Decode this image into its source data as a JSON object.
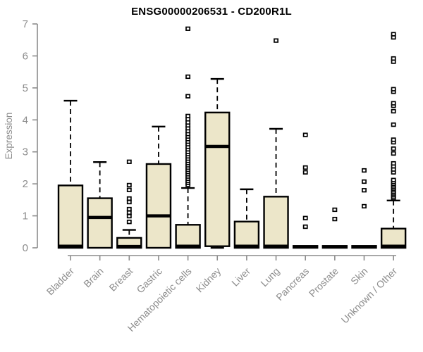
{
  "title": "ENSG00000206531 - CD200R1L",
  "ylabel": "Expression",
  "chart_data": {
    "type": "boxplot",
    "title": "ENSG00000206531 - CD200R1L",
    "xlabel": "",
    "ylabel": "Expression",
    "ylim": [
      0,
      7
    ],
    "yticks": [
      0,
      1,
      2,
      3,
      4,
      5,
      6,
      7
    ],
    "grid": false,
    "legend": "none",
    "colors": {
      "box_fill": "#ece6c9",
      "box_stroke": "#000000",
      "median": "#000000",
      "whisker": "#000000",
      "outlier_stroke": "#000000",
      "outlier_fill": "#ffffff",
      "axis": "#8c8c8c",
      "title_text": "#000000",
      "background": "#ffffff"
    },
    "categories": [
      "Bladder",
      "Brain",
      "Breast",
      "Gastric",
      "Hematopoietic cells",
      "Kidney",
      "Liver",
      "Lung",
      "Pancreas",
      "Prostate",
      "Skin",
      "Unknown / Other"
    ],
    "series": [
      {
        "name": "Bladder",
        "whisker_low": 0,
        "q1": 0,
        "median": 0.05,
        "q3": 1.95,
        "whisker_high": 4.6,
        "outliers": []
      },
      {
        "name": "Brain",
        "whisker_low": 0,
        "q1": 0,
        "median": 0.95,
        "q3": 1.55,
        "whisker_high": 2.68,
        "outliers": []
      },
      {
        "name": "Breast",
        "whisker_low": 0,
        "q1": 0,
        "median": 0.04,
        "q3": 0.31,
        "whisker_high": 0.56,
        "outliers": [
          0.81,
          0.99,
          1.1,
          1.21,
          1.43,
          1.54,
          1.81,
          1.96,
          2.69
        ]
      },
      {
        "name": "Gastric",
        "whisker_low": 0,
        "q1": 0,
        "median": 1.0,
        "q3": 2.62,
        "whisker_high": 3.79,
        "outliers": []
      },
      {
        "name": "Hematopoietic cells",
        "whisker_low": 0,
        "q1": 0,
        "median": 0.05,
        "q3": 0.72,
        "whisker_high": 1.87,
        "outliers": [
          1.97,
          2.03,
          2.09,
          2.16,
          2.23,
          2.3,
          2.37,
          2.44,
          2.51,
          2.58,
          2.65,
          2.72,
          2.79,
          2.86,
          2.93,
          3.0,
          3.08,
          3.16,
          3.24,
          3.32,
          3.4,
          3.48,
          3.56,
          3.65,
          3.74,
          3.83,
          3.92,
          4.02,
          4.12,
          4.74,
          5.35,
          6.85
        ]
      },
      {
        "name": "Kidney",
        "whisker_low": 0,
        "q1": 0.05,
        "median": 3.17,
        "q3": 4.23,
        "whisker_high": 5.28,
        "outliers": []
      },
      {
        "name": "Liver",
        "whisker_low": 0,
        "q1": 0,
        "median": 0.05,
        "q3": 0.82,
        "whisker_high": 1.83,
        "outliers": []
      },
      {
        "name": "Lung",
        "whisker_low": 0,
        "q1": 0,
        "median": 0.05,
        "q3": 1.6,
        "whisker_high": 3.72,
        "outliers": [
          6.48
        ]
      },
      {
        "name": "Pancreas",
        "whisker_low": 0,
        "q1": 0,
        "median": 0.03,
        "q3": 0.06,
        "whisker_high": 0.06,
        "outliers": [
          0.66,
          0.93,
          2.36,
          2.51,
          3.53
        ]
      },
      {
        "name": "Prostate",
        "whisker_low": 0,
        "q1": 0,
        "median": 0.03,
        "q3": 0.06,
        "whisker_high": 0.06,
        "outliers": [
          0.9,
          1.19
        ]
      },
      {
        "name": "Skin",
        "whisker_low": 0,
        "q1": 0,
        "median": 0.03,
        "q3": 0.06,
        "whisker_high": 0.06,
        "outliers": [
          1.3,
          1.8,
          2.07,
          2.42
        ]
      },
      {
        "name": "Unknown / Other",
        "whisker_low": 0,
        "q1": 0,
        "median": 0.05,
        "q3": 0.6,
        "whisker_high": 1.48,
        "outliers": [
          1.55,
          1.6,
          1.65,
          1.7,
          1.75,
          1.8,
          1.85,
          1.9,
          1.95,
          2.0,
          2.06,
          2.12,
          2.36,
          2.45,
          2.55,
          2.64,
          2.95,
          3.1,
          3.3,
          3.38,
          3.85,
          4.27,
          4.44,
          4.52,
          4.88,
          4.96,
          5.82,
          5.92,
          6.58,
          6.68
        ]
      }
    ]
  }
}
